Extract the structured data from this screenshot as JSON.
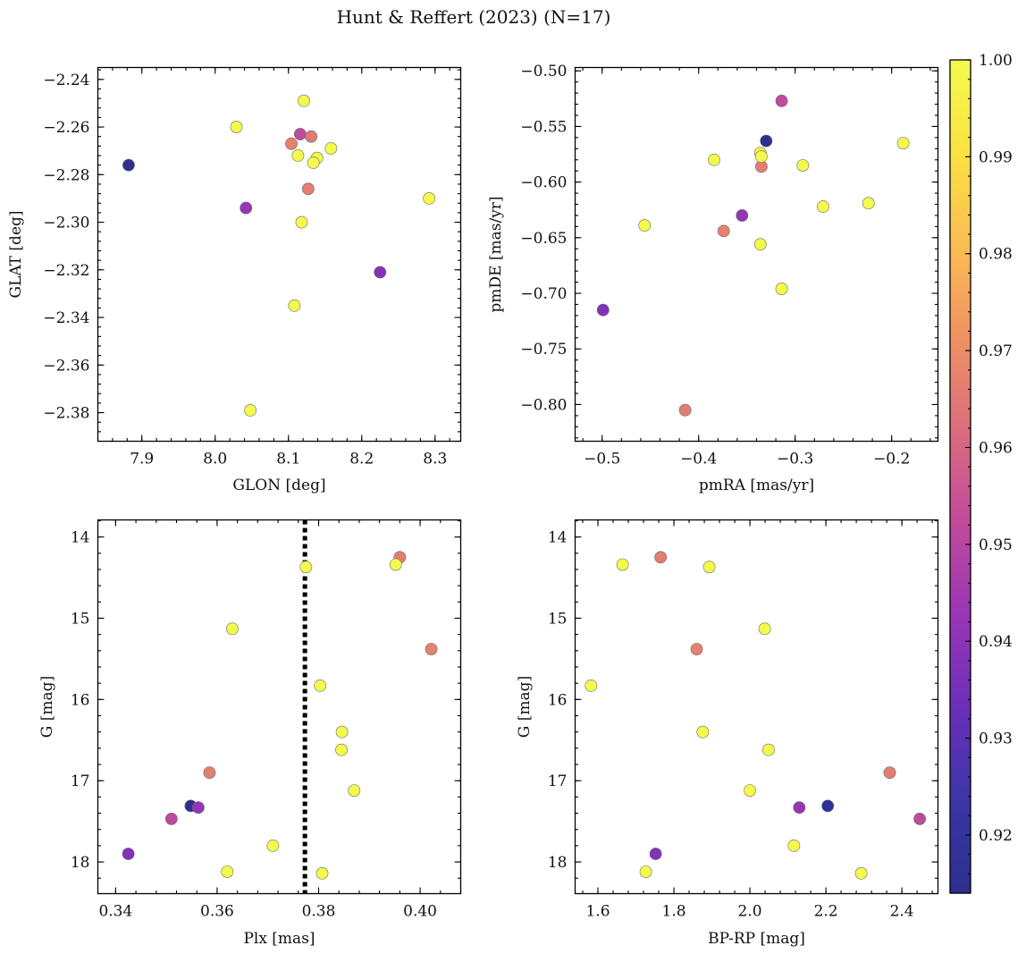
{
  "figure": {
    "title": "Hunt & Reffert (2023) (N=17)"
  },
  "colorbar": {
    "cmap": [
      "#2c2f8f",
      "#3a36a6",
      "#6b2fb9",
      "#9a35b6",
      "#c14a9c",
      "#da6e7d",
      "#ef9263",
      "#fbbd52",
      "#fbe244",
      "#f3fa4c"
    ],
    "range": [
      0.914,
      1.0
    ],
    "ticks": [
      0.92,
      0.93,
      0.94,
      0.95,
      0.96,
      0.97,
      0.98,
      0.99,
      1.0
    ],
    "tick_labels": [
      "0.92",
      "0.93",
      "0.94",
      "0.95",
      "0.96",
      "0.97",
      "0.98",
      "0.99",
      "1.00"
    ]
  },
  "chart_data": [
    {
      "type": "scatter",
      "xlabel": "GLON [deg]",
      "ylabel": "GLAT [deg]",
      "xlim": [
        7.84,
        8.335
      ],
      "ylim": [
        -2.392,
        -2.235
      ],
      "xticks": [
        7.9,
        8.0,
        8.1,
        8.2,
        8.3
      ],
      "xtick_labels": [
        "7.9",
        "8.0",
        "8.1",
        "8.2",
        "8.3"
      ],
      "yticks": [
        -2.38,
        -2.36,
        -2.34,
        -2.32,
        -2.3,
        -2.28,
        -2.26,
        -2.24
      ],
      "ytick_labels": [
        "−2.38",
        "−2.36",
        "−2.34",
        "−2.32",
        "−2.30",
        "−2.28",
        "−2.26",
        "−2.24"
      ],
      "x_minor_step": 0.02,
      "y_minor_step": 0.004,
      "x": [
        7.882,
        8.042,
        8.225,
        8.116,
        8.131,
        8.104,
        8.127,
        8.029,
        8.048,
        8.121,
        8.113,
        8.139,
        8.134,
        8.158,
        8.118,
        8.108,
        8.292
      ],
      "y": [
        -2.276,
        -2.294,
        -2.321,
        -2.263,
        -2.264,
        -2.267,
        -2.286,
        -2.26,
        -2.379,
        -2.249,
        -2.272,
        -2.273,
        -2.275,
        -2.269,
        -2.3,
        -2.335,
        -2.29
      ],
      "c": [
        0.915,
        0.942,
        0.938,
        0.952,
        0.965,
        0.967,
        0.966,
        1.0,
        1.0,
        1.0,
        1.0,
        1.0,
        1.0,
        1.0,
        1.0,
        1.0,
        1.0
      ],
      "vline": null
    },
    {
      "type": "scatter",
      "xlabel": "pmRA [mas/yr]",
      "ylabel": "pmDE [mas/yr]",
      "xlim": [
        -0.528,
        -0.152
      ],
      "ylim": [
        -0.833,
        -0.497
      ],
      "xticks": [
        -0.5,
        -0.4,
        -0.3,
        -0.2
      ],
      "xtick_labels": [
        "−0.5",
        "−0.4",
        "−0.3",
        "−0.2"
      ],
      "yticks": [
        -0.8,
        -0.75,
        -0.7,
        -0.65,
        -0.6,
        -0.55,
        -0.5
      ],
      "ytick_labels": [
        "−0.80",
        "−0.75",
        "−0.70",
        "−0.65",
        "−0.60",
        "−0.55",
        "−0.50"
      ],
      "x_minor_step": 0.02,
      "y_minor_step": 0.01,
      "x": [
        -0.33,
        -0.499,
        -0.355,
        -0.314,
        -0.335,
        -0.374,
        -0.414,
        -0.456,
        -0.384,
        -0.336,
        -0.335,
        -0.292,
        -0.188,
        -0.271,
        -0.224,
        -0.336,
        -0.314
      ],
      "y": [
        -0.563,
        -0.715,
        -0.63,
        -0.527,
        -0.586,
        -0.644,
        -0.805,
        -0.639,
        -0.58,
        -0.574,
        -0.577,
        -0.585,
        -0.565,
        -0.622,
        -0.619,
        -0.656,
        -0.696
      ],
      "c": [
        0.915,
        0.938,
        0.942,
        0.952,
        0.966,
        0.967,
        0.966,
        1.0,
        1.0,
        1.0,
        1.0,
        1.0,
        1.0,
        1.0,
        1.0,
        1.0,
        1.0
      ],
      "vline": null
    },
    {
      "type": "scatter",
      "xlabel": "Plx [mas]",
      "ylabel": "G [mag]",
      "xlim": [
        0.3365,
        0.408
      ],
      "ylim": [
        18.39,
        13.79
      ],
      "y_inverted": true,
      "xticks": [
        0.34,
        0.36,
        0.38,
        0.4
      ],
      "xtick_labels": [
        "0.34",
        "0.36",
        "0.38",
        "0.40"
      ],
      "yticks": [
        14,
        15,
        16,
        17,
        18
      ],
      "ytick_labels": [
        "14",
        "15",
        "16",
        "17",
        "18"
      ],
      "x_minor_step": 0.004,
      "y_minor_step": 0.2,
      "x": [
        0.3548,
        0.3425,
        0.3563,
        0.351,
        0.396,
        0.4022,
        0.3585,
        0.3775,
        0.3952,
        0.363,
        0.3803,
        0.3846,
        0.3845,
        0.387,
        0.371,
        0.362,
        0.3807
      ],
      "y": [
        17.31,
        17.9,
        17.33,
        17.47,
        14.25,
        15.38,
        16.9,
        14.37,
        14.34,
        15.13,
        15.83,
        16.4,
        16.62,
        17.12,
        17.8,
        18.12,
        18.14
      ],
      "c": [
        0.915,
        0.938,
        0.942,
        0.952,
        0.966,
        0.967,
        0.966,
        1.0,
        1.0,
        1.0,
        1.0,
        1.0,
        1.0,
        1.0,
        1.0,
        1.0,
        1.0
      ],
      "vline": 0.3773
    },
    {
      "type": "scatter",
      "xlabel": "BP-RP [mag]",
      "ylabel": "G [mag]",
      "xlim": [
        1.54,
        2.495
      ],
      "ylim": [
        18.39,
        13.79
      ],
      "y_inverted": true,
      "xticks": [
        1.6,
        1.8,
        2.0,
        2.2,
        2.4
      ],
      "xtick_labels": [
        "1.6",
        "1.8",
        "2.0",
        "2.2",
        "2.4"
      ],
      "yticks": [
        14,
        15,
        16,
        17,
        18
      ],
      "ytick_labels": [
        "14",
        "15",
        "16",
        "17",
        "18"
      ],
      "x_minor_step": 0.04,
      "y_minor_step": 0.2,
      "x": [
        2.205,
        1.752,
        2.13,
        2.447,
        1.765,
        1.86,
        2.368,
        1.665,
        1.893,
        2.039,
        1.582,
        1.876,
        2.049,
        2.0,
        2.116,
        1.726,
        2.293
      ],
      "y": [
        17.31,
        17.9,
        17.33,
        17.47,
        14.25,
        15.38,
        16.9,
        14.34,
        14.37,
        15.13,
        15.83,
        16.4,
        16.62,
        17.12,
        17.8,
        18.12,
        18.14
      ],
      "c": [
        0.915,
        0.938,
        0.942,
        0.952,
        0.966,
        0.967,
        0.966,
        1.0,
        1.0,
        1.0,
        1.0,
        1.0,
        1.0,
        1.0,
        1.0,
        1.0,
        1.0
      ],
      "vline": null
    }
  ]
}
